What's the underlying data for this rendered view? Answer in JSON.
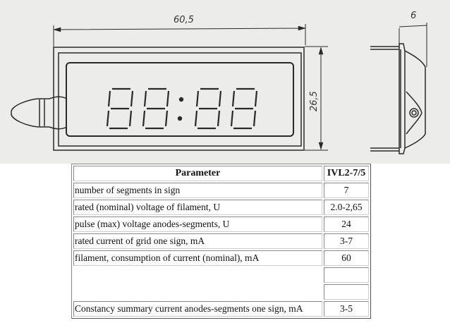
{
  "drawing": {
    "width_label": "60,5",
    "height_label": "26,5",
    "depth_label": "6",
    "line_color": "#2a2a2a"
  },
  "table": {
    "headers": [
      "Parameter",
      "IVL2-7/5"
    ],
    "rows": [
      {
        "parameter": "number of segments in sign",
        "value": "7"
      },
      {
        "parameter": "rated (nominal) voltage of filament, U",
        "value": "2.0-2,65"
      },
      {
        "parameter": "pulse (max) voltage anodes-segments, U",
        "value": "24"
      },
      {
        "parameter": "rated current of grid one sign, mA",
        "value": "3-7"
      },
      {
        "parameter": "filament, consumption of current (nominal), mA",
        "value": "60"
      },
      {
        "parameter": "",
        "value": ""
      },
      {
        "parameter": "",
        "value": ""
      },
      {
        "parameter": "Constancy summary current anodes-segments one sign, mA",
        "value": "3-5"
      }
    ]
  }
}
